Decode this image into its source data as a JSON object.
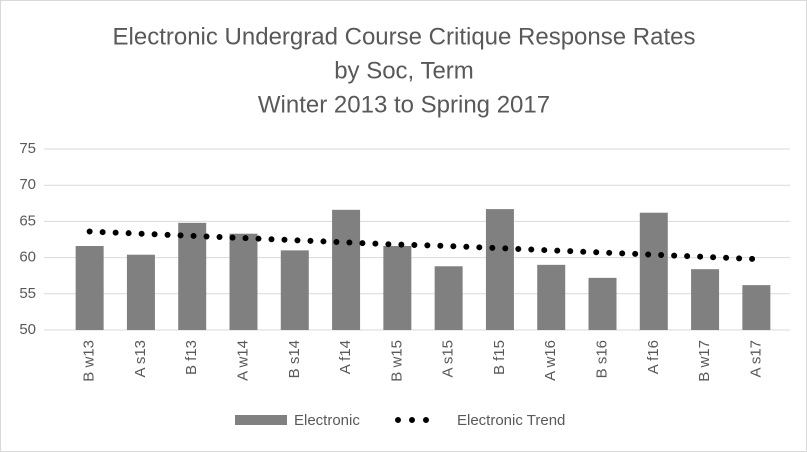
{
  "chart_data": {
    "type": "bar",
    "title": [
      "Electronic Undergrad Course Critique Response Rates",
      "by Soc, Term",
      "Winter 2013 to Spring 2017"
    ],
    "categories": [
      "B w13",
      "A s13",
      "B f13",
      "A w14",
      "B s14",
      "A f14",
      "B w15",
      "A s15",
      "B f15",
      "A w16",
      "B s16",
      "A f16",
      "B w17",
      "A s17"
    ],
    "series": [
      {
        "name": "Electronic",
        "type": "bar",
        "color": "#808080",
        "values": [
          61.6,
          60.4,
          64.8,
          63.3,
          61.0,
          66.6,
          61.6,
          58.8,
          66.7,
          59.0,
          57.2,
          66.2,
          58.4,
          56.2
        ]
      },
      {
        "name": "Electronic Trend",
        "type": "line",
        "color": "#000000",
        "values": [
          63.6,
          63.3,
          63.0,
          62.7,
          62.4,
          62.1,
          61.8,
          61.6,
          61.3,
          61.0,
          60.7,
          60.4,
          60.1,
          59.8
        ]
      }
    ],
    "ylim": [
      50,
      75
    ],
    "yticks": [
      50,
      55,
      60,
      65,
      70,
      75
    ],
    "grid": true,
    "legend": "bottom"
  }
}
